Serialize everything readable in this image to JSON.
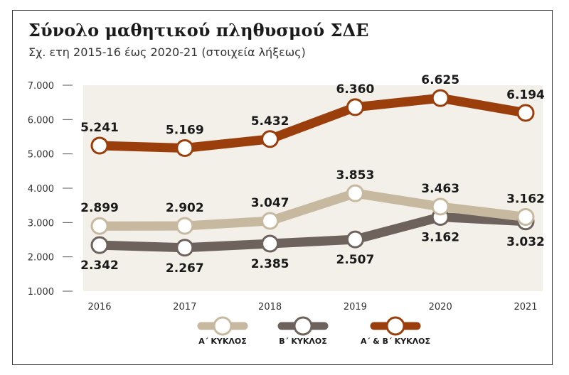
{
  "chart_data": {
    "type": "line",
    "title": "Σύνολο μαθητικού πληθυσμού ΣΔΕ",
    "subtitle": "Σχ. ετη 2015-16 έως 2020-21 (στοιχεία λήξεως)",
    "categories": [
      "2016",
      "2017",
      "2018",
      "2019",
      "2020",
      "2021"
    ],
    "ylim": [
      1000,
      7000
    ],
    "yticks": [
      1000,
      2000,
      3000,
      4000,
      5000,
      6000,
      7000
    ],
    "ytick_labels": [
      "1.000",
      "2.000",
      "3.000",
      "4.000",
      "5.000",
      "6.000",
      "7.000"
    ],
    "grid": false,
    "legend_position": "bottom",
    "series": [
      {
        "name": "Α΄ ΚΥΚΛΟΣ",
        "color": "#c7b8a0",
        "values": [
          2899,
          2902,
          3047,
          3853,
          3463,
          3162
        ],
        "labels": [
          "2.899",
          "2.902",
          "3.047",
          "3.853",
          "3.463",
          "3.162"
        ],
        "label_side": [
          "above",
          "above",
          "above",
          "above",
          "above",
          "above"
        ]
      },
      {
        "name": "Β΄ ΚΥΚΛΟΣ",
        "color": "#6d635c",
        "values": [
          2342,
          2267,
          2385,
          2507,
          3162,
          3032
        ],
        "labels": [
          "2.342",
          "2.267",
          "2.385",
          "2.507",
          "3.162",
          "3.032"
        ],
        "label_side": [
          "below",
          "below",
          "below",
          "below",
          "below",
          "below"
        ]
      },
      {
        "name": "Α΄ & Β΄ ΚΥΚΛΟΣ",
        "color": "#9a3f0c",
        "values": [
          5241,
          5169,
          5432,
          6360,
          6625,
          6194
        ],
        "labels": [
          "5.241",
          "5.169",
          "5.432",
          "6.360",
          "6.625",
          "6.194"
        ],
        "label_side": [
          "above",
          "above",
          "above",
          "above",
          "above",
          "above"
        ]
      }
    ]
  },
  "colors": {
    "plot_background": "#f3efe9",
    "axis": "#555555",
    "marker_fill": "#ffffff"
  }
}
